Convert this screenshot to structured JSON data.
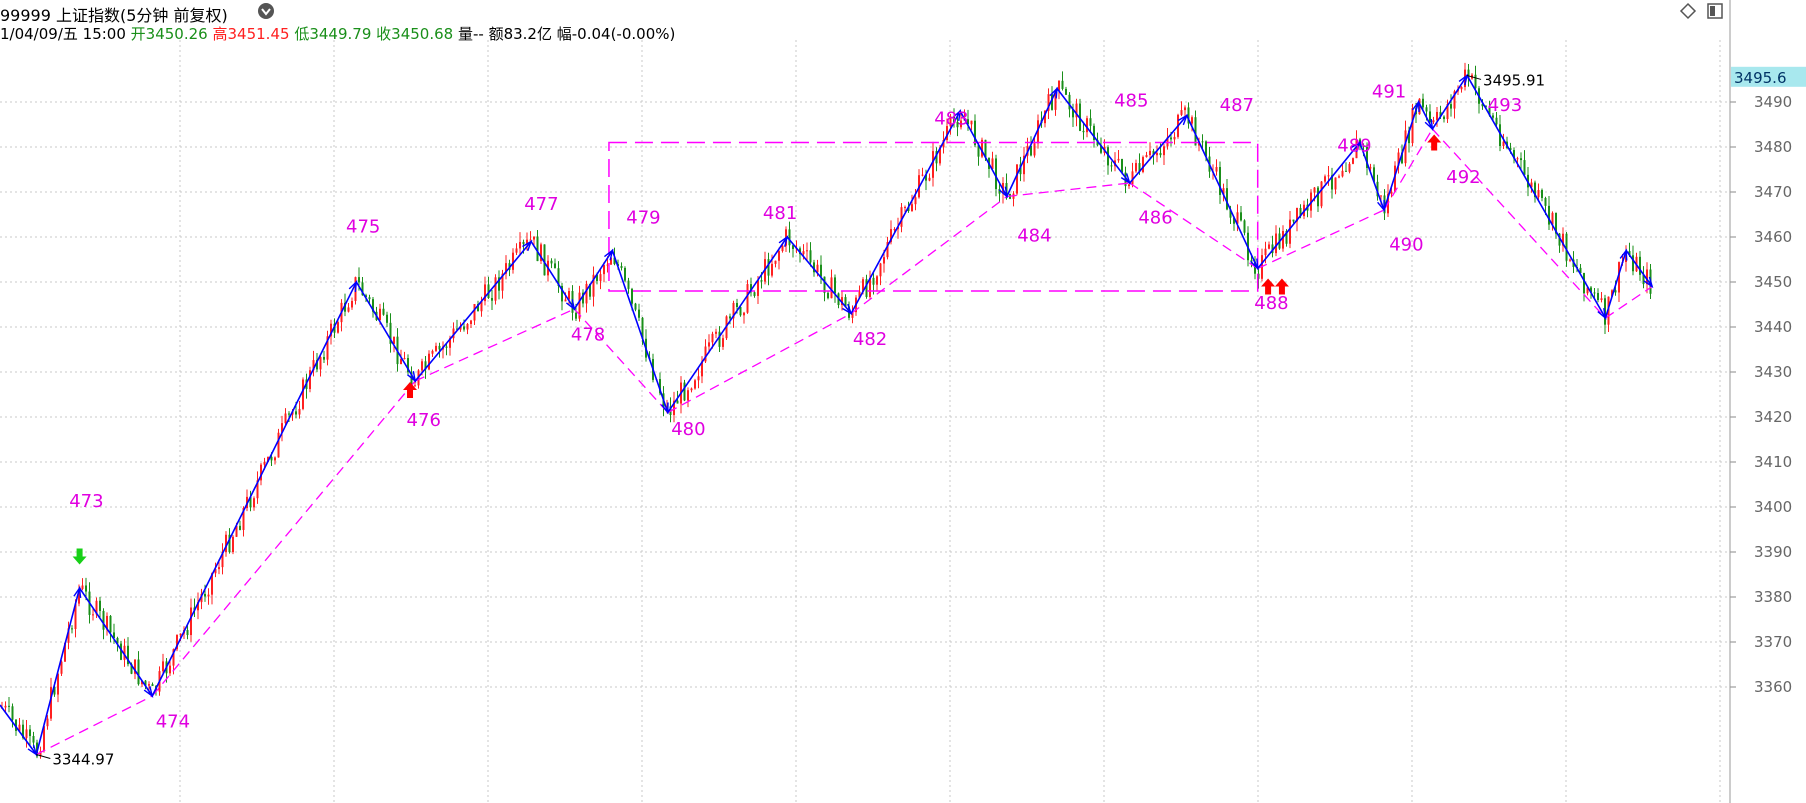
{
  "header": {
    "title": "99999 上证指数(5分钟 前复权)",
    "date": "1/04/09/五 15:00",
    "open_label": "开",
    "open": "3450.26",
    "high_label": "高",
    "high": "3451.45",
    "low_label": "低",
    "low": "3449.79",
    "close_label": "收",
    "close": "3450.68",
    "volume_text": "量--",
    "amount_text": "额83.2亿",
    "range_text": "幅-0.04(-0.00%)",
    "icons": [
      "diamond-icon",
      "panel-toggle-icon",
      "dropdown-icon"
    ]
  },
  "colors": {
    "up": "#ff2020",
    "down": "#1a8f1a",
    "wave": "#0000ff",
    "channel": "#ff00ff",
    "grid": "#c8c8c8",
    "label": "#e000e0",
    "current_price_bg": "#a8e8ee"
  },
  "chart_data": {
    "type": "line",
    "title": "",
    "ylim": [
      3336,
      3502
    ],
    "yticks": [
      3360,
      3370,
      3380,
      3390,
      3400,
      3410,
      3420,
      3430,
      3440,
      3450,
      3460,
      3470,
      3480,
      3490
    ],
    "grid": true,
    "current_price": "3495.6",
    "max_label": "3495.91",
    "min_label": "3344.97",
    "series": [
      {
        "wave_points": [
          {
            "x": 0.0,
            "y": 3356
          },
          {
            "x": 2.1,
            "y": 3345
          },
          {
            "x": 4.6,
            "y": 3382
          },
          {
            "x": 8.8,
            "y": 3358
          },
          {
            "x": 20.6,
            "y": 3450
          },
          {
            "x": 24.0,
            "y": 3428
          },
          {
            "x": 30.7,
            "y": 3459
          },
          {
            "x": 33.2,
            "y": 3444
          },
          {
            "x": 35.4,
            "y": 3457
          },
          {
            "x": 38.6,
            "y": 3421
          },
          {
            "x": 45.5,
            "y": 3460
          },
          {
            "x": 49.2,
            "y": 3443
          },
          {
            "x": 55.5,
            "y": 3488
          },
          {
            "x": 58.2,
            "y": 3469
          },
          {
            "x": 61.1,
            "y": 3493
          },
          {
            "x": 65.3,
            "y": 3472
          },
          {
            "x": 68.6,
            "y": 3487
          },
          {
            "x": 72.7,
            "y": 3453
          },
          {
            "x": 78.6,
            "y": 3481
          },
          {
            "x": 80.0,
            "y": 3466
          },
          {
            "x": 82.0,
            "y": 3490
          },
          {
            "x": 82.8,
            "y": 3484
          },
          {
            "x": 84.8,
            "y": 3495.9
          },
          {
            "x": 92.8,
            "y": 3442
          },
          {
            "x": 94.0,
            "y": 3457
          },
          {
            "x": 95.5,
            "y": 3449
          }
        ]
      }
    ],
    "wave_labels": [
      {
        "text": "473",
        "x": 4.0,
        "y": 3400
      },
      {
        "text": "474",
        "x": 9.0,
        "y": 3351
      },
      {
        "text": "475",
        "x": 20.0,
        "y": 3461
      },
      {
        "text": "476",
        "x": 23.5,
        "y": 3418
      },
      {
        "text": "477",
        "x": 30.3,
        "y": 3466
      },
      {
        "text": "478",
        "x": 33.0,
        "y": 3437
      },
      {
        "text": "479",
        "x": 36.2,
        "y": 3463
      },
      {
        "text": "480",
        "x": 38.8,
        "y": 3416
      },
      {
        "text": "481",
        "x": 44.1,
        "y": 3464
      },
      {
        "text": "482",
        "x": 49.3,
        "y": 3436
      },
      {
        "text": "483",
        "x": 54.0,
        "y": 3485
      },
      {
        "text": "484",
        "x": 58.8,
        "y": 3459
      },
      {
        "text": "485",
        "x": 64.4,
        "y": 3489
      },
      {
        "text": "486",
        "x": 65.8,
        "y": 3463
      },
      {
        "text": "487",
        "x": 70.5,
        "y": 3488
      },
      {
        "text": "488",
        "x": 72.5,
        "y": 3444
      },
      {
        "text": "489",
        "x": 77.3,
        "y": 3479
      },
      {
        "text": "490",
        "x": 80.3,
        "y": 3457
      },
      {
        "text": "491",
        "x": 79.3,
        "y": 3491
      },
      {
        "text": "492",
        "x": 83.6,
        "y": 3472
      },
      {
        "text": "493",
        "x": 86.0,
        "y": 3488
      }
    ],
    "arrows": [
      {
        "x": 4.6,
        "y": 3389,
        "dir": "down",
        "color": "#18d018"
      },
      {
        "x": 23.7,
        "y": 3426,
        "dir": "up",
        "color": "#ff0000"
      },
      {
        "x": 73.3,
        "y": 3449,
        "dir": "up",
        "color": "#ff0000"
      },
      {
        "x": 74.1,
        "y": 3449,
        "dir": "up",
        "color": "#ff0000"
      },
      {
        "x": 82.9,
        "y": 3481,
        "dir": "up",
        "color": "#ff0000"
      }
    ],
    "box": {
      "x0": 35.2,
      "x1": 72.7,
      "y0": 3448,
      "y1": 3481
    }
  }
}
